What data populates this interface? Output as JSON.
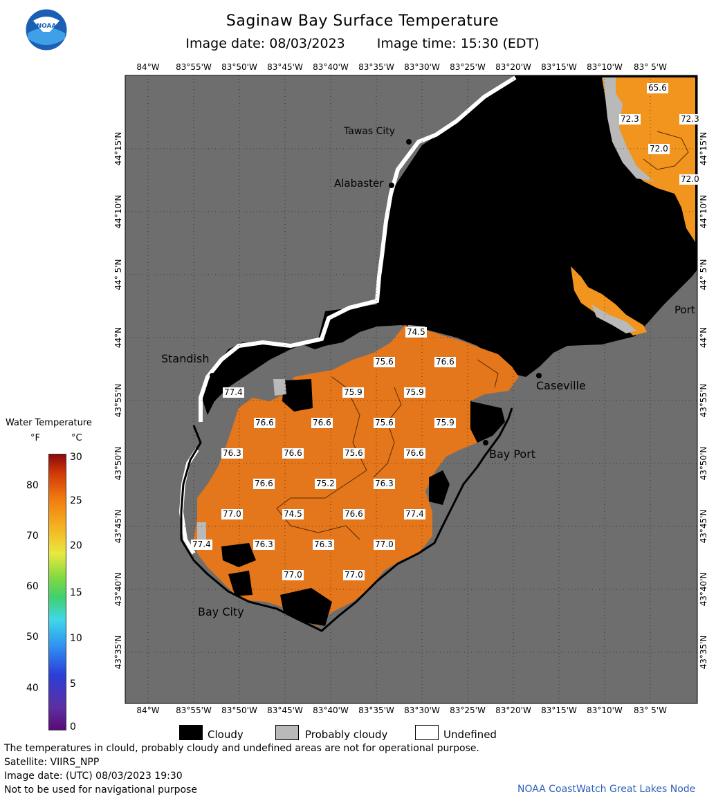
{
  "header": {
    "title": "Saginaw Bay Surface Temperature",
    "image_date": "Image date: 08/03/2023",
    "image_time": "Image time: 15:30 (EDT)"
  },
  "logo": {
    "text": "NOAA"
  },
  "map": {
    "lon_labels": [
      "84°W",
      "83°55'W",
      "83°50'W",
      "83°45'W",
      "83°40'W",
      "83°35'W",
      "83°30'W",
      "83°25'W",
      "83°20'W",
      "83°15'W",
      "83°10'W",
      "83° 5'W"
    ],
    "lat_labels": [
      "44°15'N",
      "44°10'N",
      "44° 5'N",
      "44°N",
      "43°55'N",
      "43°50'N",
      "43°45'N",
      "43°40'N",
      "43°35'N"
    ],
    "cities": [
      {
        "name": "Tawas City"
      },
      {
        "name": "Alabaster"
      },
      {
        "name": "Standish"
      },
      {
        "name": "Caseville"
      },
      {
        "name": "Bay Port"
      },
      {
        "name": "Bay City"
      },
      {
        "name": "Port"
      }
    ],
    "temperature_labels": [
      "65.6",
      "72.3",
      "72.3",
      "72.0",
      "72.0",
      "74.5",
      "75.6",
      "76.6",
      "77.4",
      "75.9",
      "75.9",
      "76.6",
      "75.6",
      "75.9",
      "76.6",
      "76.3",
      "76.6",
      "75.6",
      "76.6",
      "76.6",
      "75.2",
      "76.3",
      "77.0",
      "74.5",
      "76.6",
      "77.4",
      "77.4",
      "76.3",
      "76.3",
      "77.0",
      "77.0",
      "77.0"
    ]
  },
  "legend": {
    "title": "Water Temperature",
    "unit_f": "°F",
    "unit_c": "°C",
    "f_ticks": [
      "80",
      "70",
      "60",
      "50",
      "40"
    ],
    "c_ticks": [
      "30",
      "25",
      "20",
      "15",
      "10",
      "5",
      "0"
    ],
    "colors": {
      "water": "#e8761c",
      "land": "#6e6e6e",
      "cloud": "#000000",
      "probably_cloudy": "#b9b9b9",
      "undefined": "#ffffff"
    }
  },
  "status_legend": {
    "cloudy": "Cloudy",
    "probably_cloudy": "Probably cloudy",
    "undefined": "Undefined"
  },
  "footer": {
    "disclaimer": "The temperatures in clould, probably cloudy and undefined areas are not for operational purpose.",
    "satellite": "Satellite: VIIRS_NPP",
    "utc_date": "Image date: (UTC) 08/03/2023  19:30",
    "nav_note": "Not to be used for navigational purpose",
    "credit": "NOAA CoastWatch Great Lakes Node"
  }
}
